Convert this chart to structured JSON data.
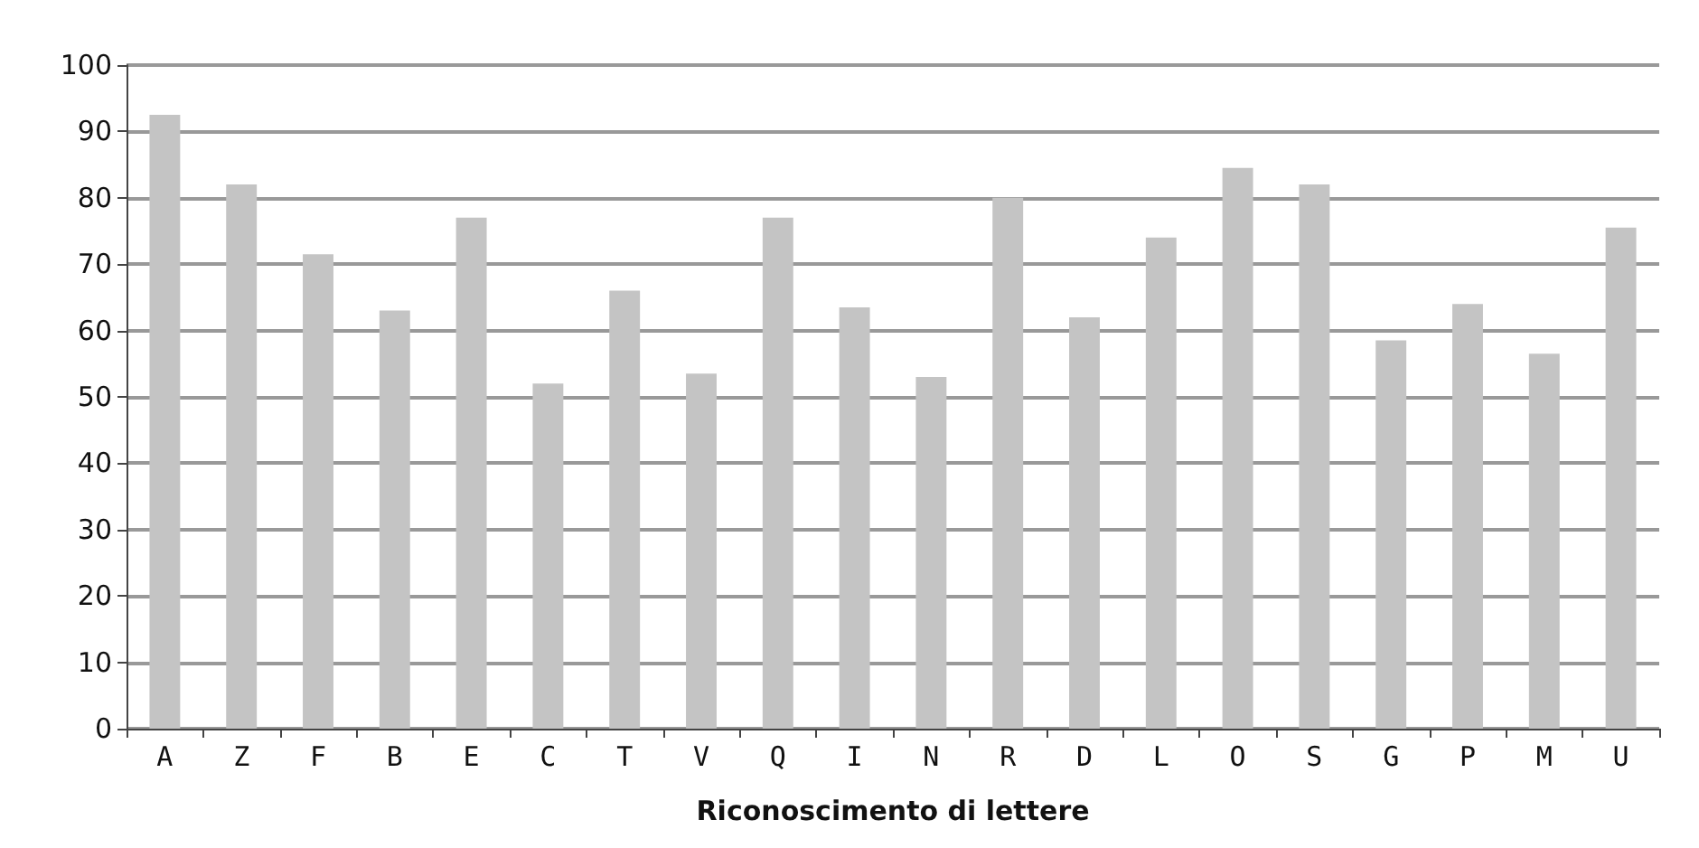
{
  "chart_data": {
    "type": "bar",
    "xlabel": "Riconoscimento di lettere",
    "categories": [
      "A",
      "Z",
      "F",
      "B",
      "E",
      "C",
      "T",
      "V",
      "Q",
      "I",
      "N",
      "R",
      "D",
      "L",
      "O",
      "S",
      "G",
      "P",
      "M",
      "U"
    ],
    "values": [
      92.5,
      82,
      71.5,
      63,
      77,
      52,
      66,
      53.5,
      77,
      63.5,
      53,
      80,
      62,
      74,
      84.5,
      82,
      58.5,
      64,
      56.5,
      75.5
    ],
    "color": "#c4c4c4",
    "ylim": [
      0,
      100
    ],
    "yticks": [
      0,
      10,
      20,
      30,
      40,
      50,
      60,
      70,
      80,
      90,
      100
    ],
    "grid": "y"
  }
}
